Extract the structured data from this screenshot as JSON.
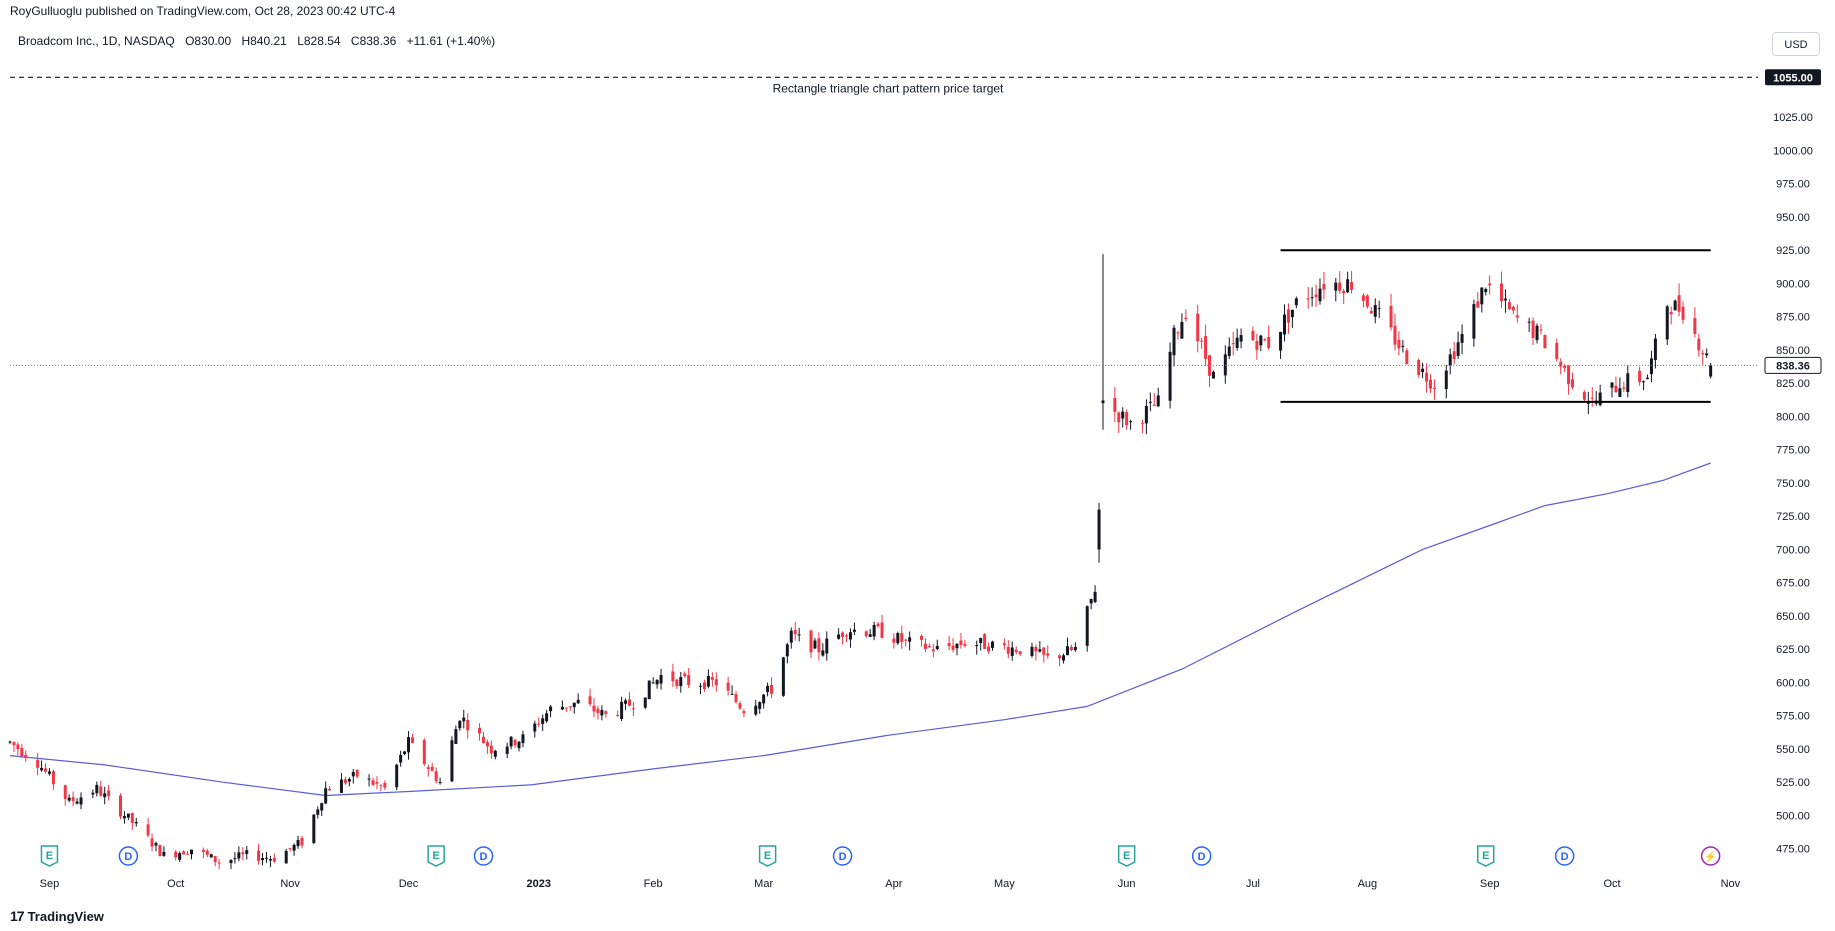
{
  "header": {
    "publisher_line": "RoyGulluoglu published on TradingView.com, Oct 28, 2023 00:42 UTC-4"
  },
  "legend": {
    "symbol": "Broadcom Inc., 1D, NASDAQ",
    "open": "O830.00",
    "high": "H840.21",
    "low": "L828.54",
    "close": "C838.36",
    "change": "+11.61 (+1.40%)"
  },
  "currency_button": "USD",
  "footer": {
    "brand": "TradingView",
    "logo_glyph": "17"
  },
  "colors": {
    "up": "#131722",
    "down": "#f23645",
    "ma_line": "#5b5bdc",
    "rectangle": "#000000",
    "price_tag_bg": "#ffffff",
    "target_tag_bg": "#131722"
  },
  "chart_data": {
    "type": "candlestick",
    "title": "Broadcom Inc., 1D, NASDAQ",
    "ylim": [
      465,
      1068
    ],
    "y_ticks": [
      475,
      500,
      525,
      550,
      575,
      600,
      625,
      650,
      675,
      700,
      725,
      750,
      775,
      800,
      825,
      850,
      875,
      900,
      925,
      950,
      975,
      1000,
      1025
    ],
    "y_tick_labels": [
      "475.00",
      "500.00",
      "525.00",
      "550.00",
      "575.00",
      "600.00",
      "625.00",
      "650.00",
      "675.00",
      "700.00",
      "725.00",
      "750.00",
      "775.00",
      "800.00",
      "825.00",
      "850.00",
      "875.00",
      "900.00",
      "925.00",
      "950.00",
      "975.00",
      "1000.00",
      "1025.00"
    ],
    "x_labels": [
      {
        "label": "Sep",
        "date": "2022-09-01"
      },
      {
        "label": "Oct",
        "date": "2022-10-03"
      },
      {
        "label": "Nov",
        "date": "2022-11-01"
      },
      {
        "label": "Dec",
        "date": "2022-12-01"
      },
      {
        "label": "2023",
        "date": "2023-01-03"
      },
      {
        "label": "Feb",
        "date": "2023-02-01"
      },
      {
        "label": "Mar",
        "date": "2023-03-01"
      },
      {
        "label": "Apr",
        "date": "2023-04-03"
      },
      {
        "label": "May",
        "date": "2023-05-01"
      },
      {
        "label": "Jun",
        "date": "2023-06-01"
      },
      {
        "label": "Jul",
        "date": "2023-07-03"
      },
      {
        "label": "Aug",
        "date": "2023-08-01"
      },
      {
        "label": "Sep",
        "date": "2023-09-01"
      },
      {
        "label": "Oct",
        "date": "2023-10-02"
      },
      {
        "label": "Nov",
        "date": "2023-11-01"
      }
    ],
    "price_anchors": [
      [
        "2022-08-22",
        555
      ],
      [
        "2022-08-29",
        540
      ],
      [
        "2022-09-06",
        510
      ],
      [
        "2022-09-13",
        520
      ],
      [
        "2022-09-23",
        492
      ],
      [
        "2022-09-30",
        470
      ],
      [
        "2022-10-07",
        475
      ],
      [
        "2022-10-14",
        465
      ],
      [
        "2022-10-21",
        470
      ],
      [
        "2022-10-28",
        468
      ],
      [
        "2022-11-04",
        480
      ],
      [
        "2022-11-10",
        520
      ],
      [
        "2022-11-18",
        530
      ],
      [
        "2022-11-25",
        520
      ],
      [
        "2022-12-01",
        555
      ],
      [
        "2022-12-09",
        525
      ],
      [
        "2022-12-14",
        575
      ],
      [
        "2022-12-22",
        550
      ],
      [
        "2022-12-30",
        558
      ],
      [
        "2023-01-06",
        580
      ],
      [
        "2023-01-13",
        585
      ],
      [
        "2023-01-20",
        575
      ],
      [
        "2023-01-27",
        585
      ],
      [
        "2023-02-03",
        605
      ],
      [
        "2023-02-10",
        600
      ],
      [
        "2023-02-17",
        600
      ],
      [
        "2023-02-24",
        580
      ],
      [
        "2023-03-03",
        595
      ],
      [
        "2023-03-08",
        635
      ],
      [
        "2023-03-15",
        625
      ],
      [
        "2023-03-22",
        640
      ],
      [
        "2023-03-31",
        638
      ],
      [
        "2023-04-06",
        630
      ],
      [
        "2023-04-14",
        625
      ],
      [
        "2023-04-21",
        630
      ],
      [
        "2023-04-28",
        628
      ],
      [
        "2023-05-05",
        625
      ],
      [
        "2023-05-12",
        618
      ],
      [
        "2023-05-19",
        625
      ],
      [
        "2023-05-25",
        680
      ],
      [
        "2023-05-26",
        810
      ],
      [
        "2023-06-02",
        795
      ],
      [
        "2023-06-09",
        810
      ],
      [
        "2023-06-13",
        860
      ],
      [
        "2023-06-16",
        880
      ],
      [
        "2023-06-23",
        830
      ],
      [
        "2023-06-30",
        860
      ],
      [
        "2023-07-07",
        855
      ],
      [
        "2023-07-14",
        885
      ],
      [
        "2023-07-21",
        900
      ],
      [
        "2023-07-28",
        900
      ],
      [
        "2023-08-04",
        875
      ],
      [
        "2023-08-11",
        845
      ],
      [
        "2023-08-18",
        825
      ],
      [
        "2023-08-25",
        860
      ],
      [
        "2023-08-31",
        900
      ],
      [
        "2023-09-07",
        875
      ],
      [
        "2023-09-14",
        860
      ],
      [
        "2023-09-21",
        830
      ],
      [
        "2023-09-27",
        810
      ],
      [
        "2023-10-04",
        825
      ],
      [
        "2023-10-11",
        830
      ],
      [
        "2023-10-16",
        885
      ],
      [
        "2023-10-20",
        880
      ],
      [
        "2023-10-25",
        850
      ],
      [
        "2023-10-27",
        838.36
      ]
    ],
    "spike_candle": {
      "date": "2023-05-26",
      "open": 810,
      "high": 922,
      "low": 790,
      "close": 812
    },
    "gap_candle": {
      "date": "2023-05-25",
      "open": 700,
      "high": 735,
      "low": 690,
      "close": 730
    },
    "moving_average": {
      "name": "",
      "points": [
        [
          "2022-08-22",
          545
        ],
        [
          "2022-09-15",
          538
        ],
        [
          "2022-10-15",
          525
        ],
        [
          "2022-11-10",
          515
        ],
        [
          "2022-12-01",
          518
        ],
        [
          "2023-01-01",
          523
        ],
        [
          "2023-02-01",
          535
        ],
        [
          "2023-03-01",
          545
        ],
        [
          "2023-04-01",
          560
        ],
        [
          "2023-05-01",
          572
        ],
        [
          "2023-05-22",
          582
        ],
        [
          "2023-06-15",
          610
        ],
        [
          "2023-07-15",
          655
        ],
        [
          "2023-08-15",
          700
        ],
        [
          "2023-09-01",
          718
        ],
        [
          "2023-09-15",
          733
        ],
        [
          "2023-10-01",
          742
        ],
        [
          "2023-10-15",
          752
        ],
        [
          "2023-10-27",
          765
        ]
      ]
    },
    "rectangle_pattern": {
      "top": 925,
      "bottom": 811,
      "start": "2023-07-10",
      "end": "2023-10-27"
    },
    "price_target": {
      "value": 1055.0,
      "label": "Rectangle triangle chart pattern price target",
      "tag": "1055.00"
    },
    "last_price": {
      "value": 838.36,
      "tag": "838.36"
    },
    "event_markers": [
      {
        "type": "E",
        "date": "2022-09-01"
      },
      {
        "type": "D",
        "date": "2022-09-21"
      },
      {
        "type": "E",
        "date": "2022-12-08"
      },
      {
        "type": "D",
        "date": "2022-12-20"
      },
      {
        "type": "E",
        "date": "2023-03-02"
      },
      {
        "type": "D",
        "date": "2023-03-21"
      },
      {
        "type": "E",
        "date": "2023-06-01"
      },
      {
        "type": "D",
        "date": "2023-06-20"
      },
      {
        "type": "E",
        "date": "2023-08-31"
      },
      {
        "type": "D",
        "date": "2023-09-20"
      },
      {
        "type": "bolt",
        "date": "2023-10-27"
      }
    ],
    "marker_labels": {
      "E": "E",
      "D": "D",
      "bolt": "⚡"
    }
  }
}
